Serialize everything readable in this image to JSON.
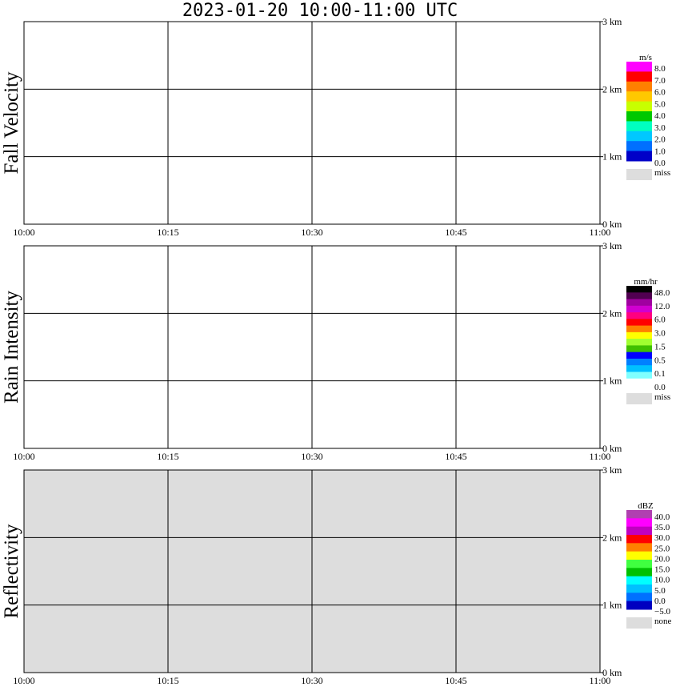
{
  "title": "2023-01-20  10:00-11:00 UTC",
  "x_ticks": [
    "10:00",
    "10:15",
    "10:30",
    "10:45",
    "11:00"
  ],
  "y_ticks": [
    "0 km",
    "1 km",
    "2 km",
    "3 km"
  ],
  "chart_data": [
    {
      "type": "heatmap",
      "ylabel": "Fall Velocity",
      "xlim": [
        "10:00",
        "11:00"
      ],
      "ylim": [
        0,
        3
      ],
      "grid": true,
      "background": "#ffffff",
      "colorbar": {
        "unit": "m/s",
        "colors": [
          "#ff00ff",
          "#ff0000",
          "#ff8000",
          "#ffc800",
          "#c8ff00",
          "#00c800",
          "#00ffc0",
          "#00c8ff",
          "#0070ff",
          "#0000c8",
          "#dddddd"
        ],
        "labels": [
          "8.0",
          "7.0",
          "6.0",
          "5.0",
          "4.0",
          "3.0",
          "2.0",
          "1.0",
          "0.0",
          "miss"
        ]
      }
    },
    {
      "type": "heatmap",
      "ylabel": "Rain Intensity",
      "xlim": [
        "10:00",
        "11:00"
      ],
      "ylim": [
        0,
        3
      ],
      "grid": true,
      "background": "#ffffff",
      "colorbar": {
        "unit": "mm/hr",
        "colors": [
          "#000000",
          "#500050",
          "#a000a0",
          "#d000d0",
          "#ff0080",
          "#ff0000",
          "#ff8000",
          "#ffff00",
          "#a0ff30",
          "#40c000",
          "#0000ff",
          "#0080ff",
          "#00c0ff",
          "#80ffff",
          "#ffffff",
          "#dddddd"
        ],
        "labels": [
          "48.0",
          "12.0",
          "6.0",
          "3.0",
          "1.5",
          "0.5",
          "0.1",
          "0.0",
          "miss"
        ]
      }
    },
    {
      "type": "heatmap",
      "ylabel": "Reflectivity",
      "xlim": [
        "10:00",
        "11:00"
      ],
      "ylim": [
        0,
        3
      ],
      "grid": true,
      "background": "#dddddd",
      "colorbar": {
        "unit": "dBZ",
        "colors": [
          "#b040b0",
          "#ff00ff",
          "#c000c0",
          "#ff0000",
          "#ff8000",
          "#ffff00",
          "#40ff40",
          "#00c000",
          "#00ffff",
          "#00c0ff",
          "#0070ff",
          "#0000c0",
          "#dddddd"
        ],
        "labels": [
          "40.0",
          "35.0",
          "30.0",
          "25.0",
          "20.0",
          "15.0",
          "10.0",
          "5.0",
          "0.0",
          "−5.0",
          "none"
        ]
      }
    }
  ]
}
